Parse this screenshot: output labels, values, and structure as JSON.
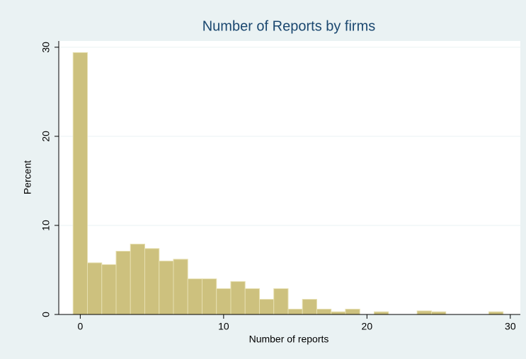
{
  "chart_data": {
    "type": "histogram",
    "title": "Number of Reports by firms",
    "x_label": "Number of reports",
    "y_label": "Percent",
    "bins": [
      -0.5,
      0.5,
      1.5,
      2.5,
      3.5,
      4.5,
      5.5,
      6.5,
      7.5,
      8.5,
      9.5,
      10.5,
      11.5,
      12.5,
      13.5,
      14.5,
      15.5,
      16.5,
      17.5,
      18.5,
      19.5,
      20.5,
      21.5,
      22.5,
      23.5,
      24.5,
      25.5,
      26.5,
      27.5,
      28.5,
      29.5
    ],
    "values": [
      29.4,
      5.8,
      5.6,
      7.1,
      7.9,
      7.4,
      6.0,
      6.2,
      4.0,
      4.0,
      2.9,
      3.7,
      2.9,
      1.7,
      2.9,
      0.6,
      1.7,
      0.6,
      0.3,
      0.6,
      0,
      0.3,
      0,
      0,
      0.4,
      0.3,
      0,
      0,
      0,
      0.3
    ],
    "color": "#cdc17e",
    "xlim": [
      -1.5,
      30.7
    ],
    "xticks": [
      0,
      10,
      20,
      30
    ],
    "ylim": [
      0,
      30.7
    ],
    "yticks": [
      0,
      10,
      20,
      30
    ],
    "grid": true
  }
}
